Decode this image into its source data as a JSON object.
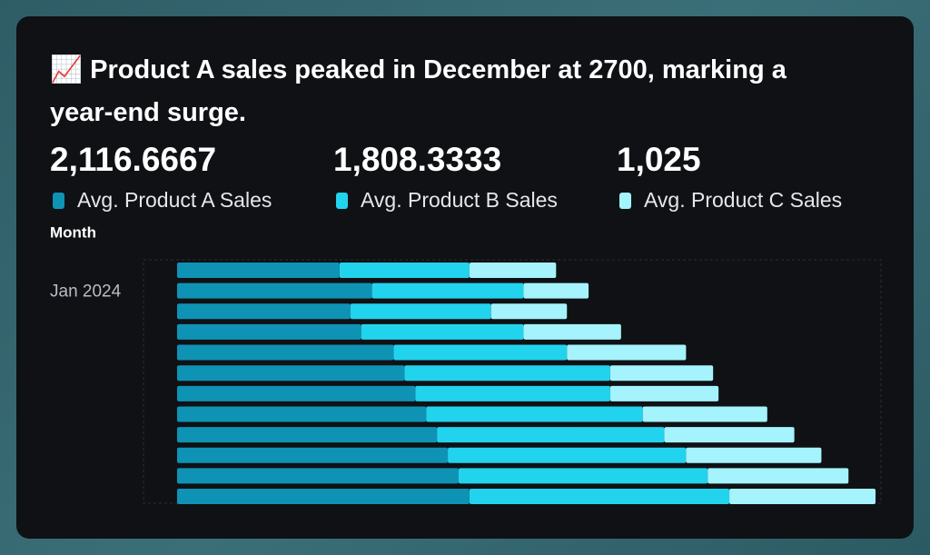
{
  "chart_data": {
    "type": "stacked-bar-horizontal",
    "title": "📈 Product A sales peaked in December at 2700, marking a year-end surge.",
    "y_label": "Month",
    "categories": [
      "Jan 2024",
      null,
      null,
      null,
      null,
      null,
      null,
      null,
      null,
      null,
      null,
      null
    ],
    "series": [
      {
        "name": "Avg. Product A Sales",
        "color": "#0e93b5",
        "average": 2116.6667,
        "average_label": "2,116.6667",
        "values": [
          1500,
          1800,
          1600,
          1700,
          2000,
          2100,
          2200,
          2300,
          2400,
          2500,
          2600,
          2700
        ]
      },
      {
        "name": "Avg. Product B Sales",
        "color": "#22d3ee",
        "average": 1808.3333,
        "average_label": "1,808.3333",
        "values": [
          1200,
          1400,
          1300,
          1500,
          1600,
          1900,
          1800,
          2000,
          2100,
          2200,
          2300,
          2400
        ]
      },
      {
        "name": "Avg. Product C Sales",
        "color": "#a5f3fc",
        "average": 1025,
        "average_label": "1,025",
        "values": [
          800,
          600,
          700,
          900,
          1100,
          950,
          1000,
          1150,
          1200,
          1250,
          1300,
          1350
        ]
      }
    ],
    "xlim": [
      0,
      6500
    ]
  }
}
